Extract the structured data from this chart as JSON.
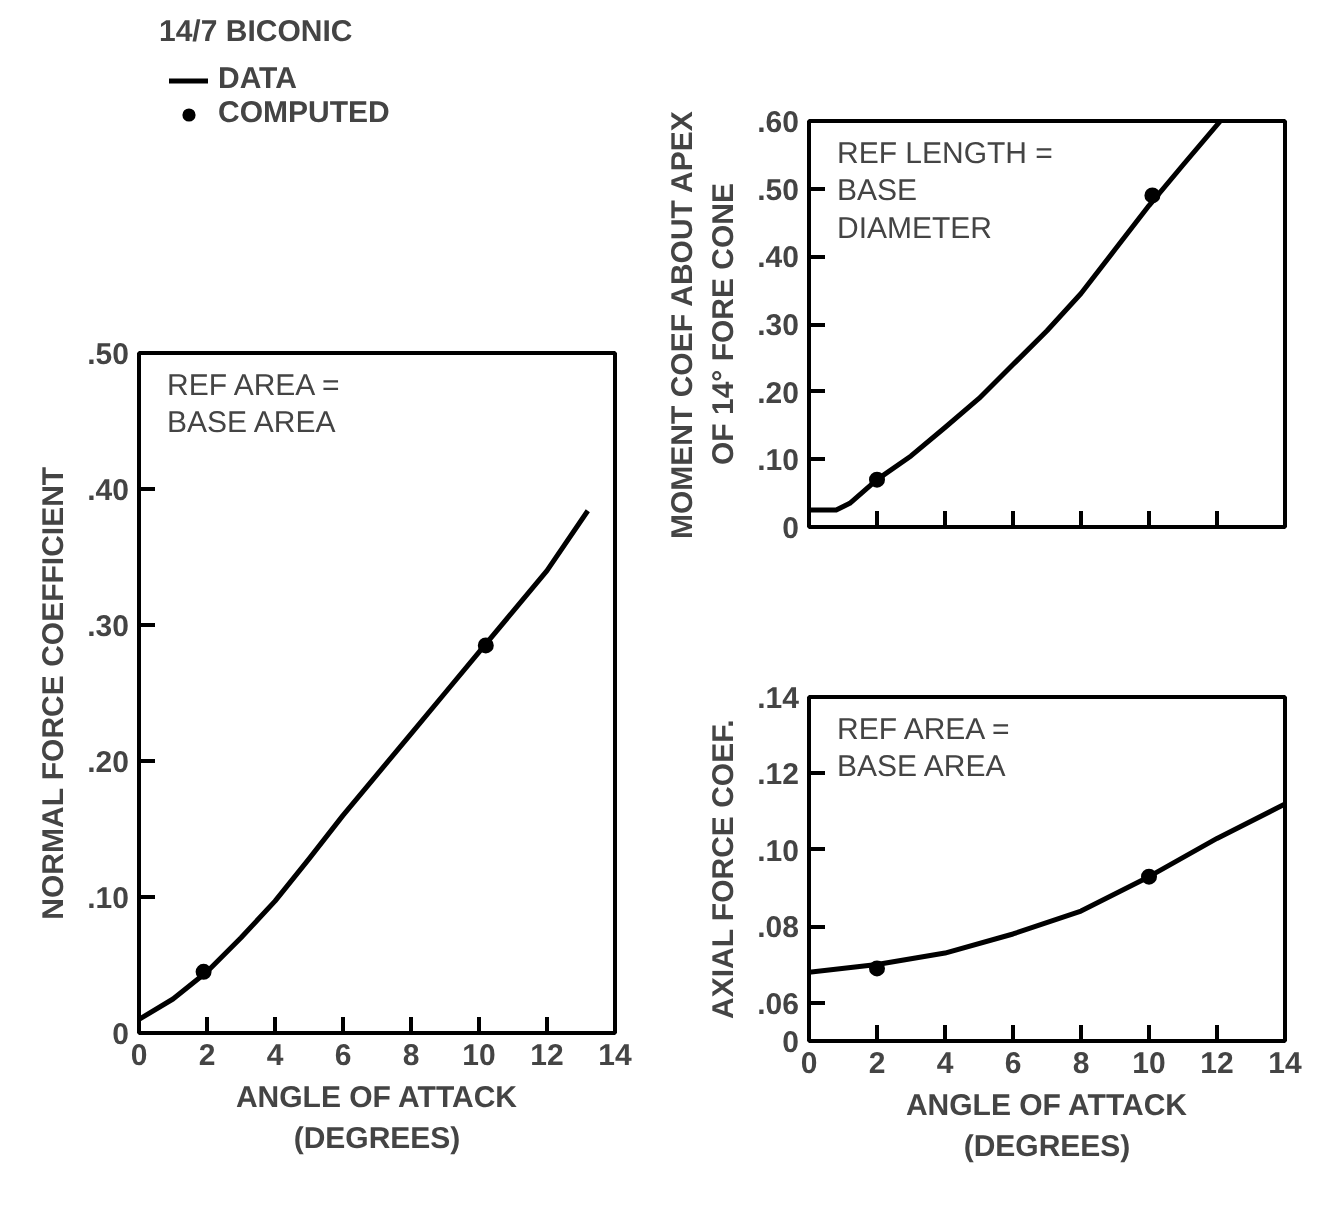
{
  "chart_data": [
    {
      "type": "line",
      "title": "14/7 BICONIC",
      "xlabel": "ANGLE OF ATTACK\n(DEGREES)",
      "ylabel": "NORMAL FORCE COEFFICIENT",
      "annotations": [
        "REF AREA =\nBASE AREA"
      ],
      "legend": "top",
      "grid": false,
      "line_style": "solid",
      "xlim": [
        0,
        14
      ],
      "xticks": [
        0,
        2,
        4,
        6,
        8,
        10,
        12,
        14
      ],
      "ylim": [
        0,
        0.5
      ],
      "yticks": [
        0,
        {
          "value": 0.1,
          "label": ".10"
        },
        {
          "value": 0.2,
          "label": ".20"
        },
        {
          "value": 0.3,
          "label": ".30"
        },
        {
          "value": 0.4,
          "label": ".40"
        },
        {
          "value": 0.5,
          "label": ".50"
        }
      ],
      "series": [
        {
          "name": "DATA",
          "color": "#000000",
          "x": [
            0,
            1,
            2,
            3,
            4,
            5,
            6,
            7,
            8,
            9,
            10,
            11,
            12,
            13.2
          ],
          "values": [
            0.01,
            0.025,
            0.045,
            0.07,
            0.097,
            0.128,
            0.16,
            0.19,
            0.22,
            0.25,
            0.28,
            0.31,
            0.34,
            0.384
          ]
        },
        {
          "name": "COMPUTED",
          "type": "scatter",
          "marker": "circle",
          "color": "#000000",
          "x": [
            1.9,
            10.2
          ],
          "values": [
            0.045,
            0.285
          ]
        }
      ]
    },
    {
      "type": "line",
      "ylabel": "MOMENT COEF ABOUT APEX\nOF 14° FORE CONE",
      "annotations": [
        "REF LENGTH =\nBASE\nDIAMETER"
      ],
      "grid": false,
      "line_style": "solid",
      "tick_labels": "y",
      "xlim": [
        0,
        14
      ],
      "xticks": [
        0,
        2,
        4,
        6,
        8,
        10,
        12,
        14
      ],
      "ylim": [
        0,
        0.6
      ],
      "yticks": [
        0,
        {
          "value": 0.1,
          "label": ".10"
        },
        {
          "value": 0.2,
          "label": ".20"
        },
        {
          "value": 0.3,
          "label": ".30"
        },
        {
          "value": 0.4,
          "label": ".40"
        },
        {
          "value": 0.5,
          "label": ".50"
        },
        {
          "value": 0.6,
          "label": ".60"
        }
      ],
      "series": [
        {
          "color": "#000000",
          "x": [
            0,
            0.8,
            1.2,
            2,
            3,
            4,
            5,
            6,
            7,
            8,
            9,
            10,
            11,
            12.1
          ],
          "values": [
            0.025,
            0.025,
            0.035,
            0.07,
            0.105,
            0.147,
            0.19,
            0.24,
            0.29,
            0.345,
            0.41,
            0.475,
            0.535,
            0.6
          ]
        },
        {
          "type": "scatter",
          "marker": "circle",
          "color": "#000000",
          "x": [
            2.0,
            10.1
          ],
          "values": [
            0.07,
            0.49
          ]
        }
      ]
    },
    {
      "type": "line",
      "xlabel": "ANGLE OF ATTACK\n(DEGREES)",
      "ylabel": "AXIAL FORCE COEF.",
      "annotations": [
        "REF AREA =\nBASE AREA"
      ],
      "grid": false,
      "line_style": "solid",
      "xlim": [
        0,
        14
      ],
      "xticks": [
        0,
        2,
        4,
        6,
        8,
        10,
        12,
        14
      ],
      "ylim": [
        0.05,
        0.14
      ],
      "yticks": [
        {
          "value": 0.05,
          "label": "0"
        },
        {
          "value": 0.06,
          "label": ".06"
        },
        {
          "value": 0.08,
          "label": ".08"
        },
        {
          "value": 0.1,
          "label": ".10"
        },
        {
          "value": 0.12,
          "label": ".12"
        },
        {
          "value": 0.14,
          "label": ".14"
        }
      ],
      "series": [
        {
          "color": "#000000",
          "x": [
            0,
            2,
            4,
            6,
            8,
            10,
            12,
            14
          ],
          "values": [
            0.068,
            0.07,
            0.073,
            0.078,
            0.084,
            0.093,
            0.103,
            0.112
          ]
        },
        {
          "type": "scatter",
          "marker": "circle",
          "color": "#000000",
          "x": [
            2,
            10
          ],
          "values": [
            0.069,
            0.093
          ]
        }
      ]
    }
  ]
}
